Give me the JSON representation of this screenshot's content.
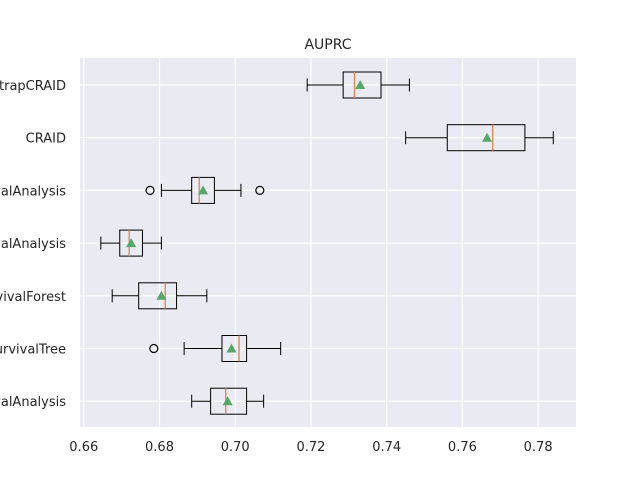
{
  "chart_data": {
    "type": "boxplot",
    "title": "AUPRC",
    "xlabel": "",
    "ylabel": "",
    "xlim": [
      0.659,
      0.79
    ],
    "x_ticks": [
      "0.66",
      "0.68",
      "0.70",
      "0.72",
      "0.74",
      "0.76",
      "0.78"
    ],
    "x_tick_values": [
      0.66,
      0.68,
      0.7,
      0.72,
      0.74,
      0.76,
      0.78
    ],
    "grid": true,
    "colors": {
      "background": "#eaeaf2",
      "grid": "#ffffff",
      "box": "#000000",
      "median": "#dd8452",
      "mean": "#55a868"
    },
    "categories": [
      "BootstrapCRAID",
      "CRAID",
      "RandomSurvivalAnalysis",
      "CoxSurvivalAnalysis",
      "RandomSurvivalForest",
      "SurvivalTree",
      "DeepSurvivalAnalysis"
    ],
    "boxes": [
      {
        "whisker_low": 0.719,
        "q1": 0.7285,
        "median": 0.7315,
        "mean": 0.733,
        "q3": 0.7385,
        "whisker_high": 0.746,
        "outliers": []
      },
      {
        "whisker_low": 0.745,
        "q1": 0.756,
        "median": 0.768,
        "mean": 0.7665,
        "q3": 0.7765,
        "whisker_high": 0.784,
        "outliers": []
      },
      {
        "whisker_low": 0.6805,
        "q1": 0.6885,
        "median": 0.6905,
        "mean": 0.6915,
        "q3": 0.6945,
        "whisker_high": 0.7015,
        "outliers": [
          0.6775,
          0.7065
        ]
      },
      {
        "whisker_low": 0.6645,
        "q1": 0.6695,
        "median": 0.672,
        "mean": 0.6725,
        "q3": 0.6755,
        "whisker_high": 0.6805,
        "outliers": []
      },
      {
        "whisker_low": 0.6675,
        "q1": 0.6745,
        "median": 0.6815,
        "mean": 0.6805,
        "q3": 0.6845,
        "whisker_high": 0.6925,
        "outliers": []
      },
      {
        "whisker_low": 0.6865,
        "q1": 0.6965,
        "median": 0.701,
        "mean": 0.699,
        "q3": 0.703,
        "whisker_high": 0.712,
        "outliers": [
          0.6785
        ]
      },
      {
        "whisker_low": 0.6885,
        "q1": 0.6935,
        "median": 0.6975,
        "mean": 0.698,
        "q3": 0.703,
        "whisker_high": 0.7075,
        "outliers": []
      }
    ]
  }
}
